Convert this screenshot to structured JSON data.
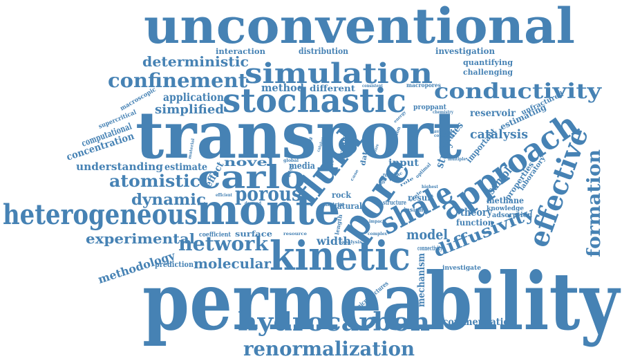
{
  "word_cloud": {
    "color": "#4682b4",
    "words": [
      "unconventional",
      "transport",
      "permeability",
      "stochastic",
      "simulation",
      "monte",
      "carlo",
      "kinetic",
      "fluid",
      "pore",
      "approach",
      "effective",
      "conductivity",
      "heterogeneous",
      "hydrocarbon",
      "renormalization",
      "shale",
      "deterministic",
      "confinement",
      "atomistic",
      "dynamic",
      "porous",
      "network",
      "formation",
      "diffusivity",
      "experimental",
      "molecular",
      "methodology",
      "understanding",
      "concentration",
      "computational",
      "application",
      "simplified",
      "method",
      "different",
      "interaction",
      "distribution",
      "investigation",
      "quantifying",
      "challenging",
      "macropores",
      "proppant",
      "reservoir",
      "estimating",
      "unfractured",
      "catalysis",
      "studies",
      "important",
      "sample",
      "properties",
      "laboratory",
      "methane",
      "theory",
      "knowledge",
      "adsorption",
      "function",
      "model",
      "result",
      "insight",
      "width",
      "rock",
      "natural",
      "surface",
      "coefficient",
      "prediction",
      "diffusion",
      "estimate",
      "novel",
      "media",
      "input",
      "remain",
      "structure",
      "analysis",
      "connectivity",
      "investigate",
      "mechanism",
      "microfractures",
      "recommendation",
      "macroscopic",
      "supercritical",
      "predict",
      "data",
      "effect",
      "study",
      "matrix",
      "length",
      "impact",
      "complex",
      "resource",
      "demand",
      "efficient",
      "global",
      "testing",
      "material",
      "consistent",
      "chemistry",
      "condition",
      "available",
      "equation",
      "significant",
      "multiple",
      "highest",
      "optimal",
      "energy",
      "catalyst",
      "scale",
      "range",
      "edge",
      "micro",
      "case",
      "role",
      "basic",
      "ensure",
      "focus"
    ]
  }
}
